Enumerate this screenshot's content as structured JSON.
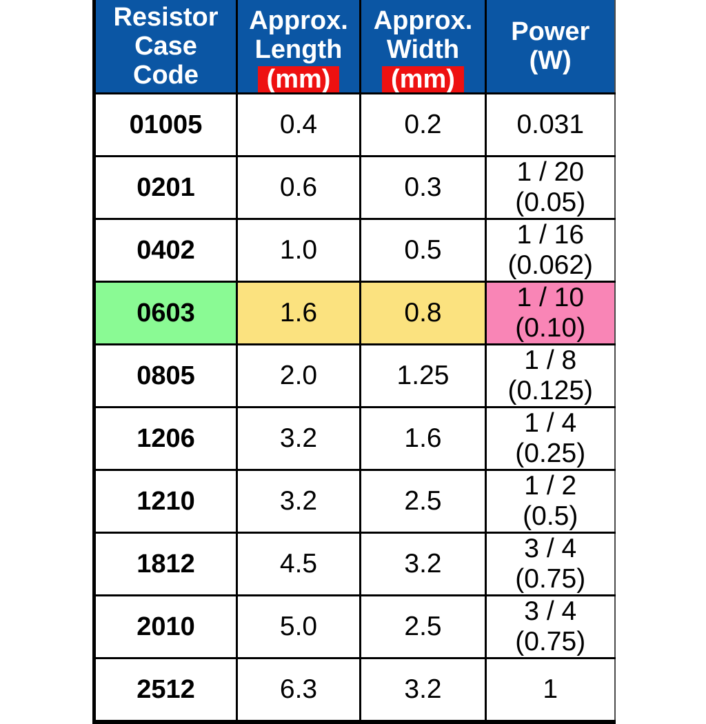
{
  "chart_data": {
    "type": "table",
    "columns": [
      "Resistor Case Code",
      "Approx. Length (mm)",
      "Approx. Width (mm)",
      "Power (W)"
    ],
    "rows": [
      [
        "01005",
        "0.4",
        "0.2",
        "0.031"
      ],
      [
        "0201",
        "0.6",
        "0.3",
        "1 / 20 (0.05)"
      ],
      [
        "0402",
        "1.0",
        "0.5",
        "1 / 16 (0.062)"
      ],
      [
        "0603",
        "1.6",
        "0.8",
        "1 / 10 (0.10)"
      ],
      [
        "0805",
        "2.0",
        "1.25",
        "1 / 8 (0.125)"
      ],
      [
        "1206",
        "3.2",
        "1.6",
        "1 / 4 (0.25)"
      ],
      [
        "1210",
        "3.2",
        "2.5",
        "1 / 2 (0.5)"
      ],
      [
        "1812",
        "4.5",
        "3.2",
        "3 / 4 (0.75)"
      ],
      [
        "2010",
        "5.0",
        "2.5",
        "3 / 4 (0.75)"
      ],
      [
        "2512",
        "6.3",
        "3.2",
        "1"
      ]
    ],
    "highlighted_row": "0603",
    "legend_position": "none",
    "grid": true
  },
  "table": {
    "header": {
      "code_lines": [
        "Resistor",
        "Case",
        "Code"
      ],
      "length_lines": [
        "Approx.",
        "Length"
      ],
      "length_unit": "(mm)",
      "width_lines": [
        "Approx.",
        "Width"
      ],
      "width_unit": "(mm)",
      "power_lines": [
        "Power",
        "(W)"
      ]
    },
    "rows": [
      {
        "code": "01005",
        "length": "0.4",
        "width": "0.2",
        "power_lines": [
          "0.031"
        ],
        "highlight": false
      },
      {
        "code": "0201",
        "length": "0.6",
        "width": "0.3",
        "power_lines": [
          "1 / 20",
          "(0.05)"
        ],
        "highlight": false
      },
      {
        "code": "0402",
        "length": "1.0",
        "width": "0.5",
        "power_lines": [
          "1 / 16",
          "(0.062)"
        ],
        "highlight": false
      },
      {
        "code": "0603",
        "length": "1.6",
        "width": "0.8",
        "power_lines": [
          "1 / 10",
          "(0.10)"
        ],
        "highlight": true
      },
      {
        "code": "0805",
        "length": "2.0",
        "width": "1.25",
        "power_lines": [
          "1 / 8",
          "(0.125)"
        ],
        "highlight": false
      },
      {
        "code": "1206",
        "length": "3.2",
        "width": "1.6",
        "power_lines": [
          "1 / 4",
          "(0.25)"
        ],
        "highlight": false
      },
      {
        "code": "1210",
        "length": "3.2",
        "width": "2.5",
        "power_lines": [
          "1 / 2",
          "(0.5)"
        ],
        "highlight": false
      },
      {
        "code": "1812",
        "length": "4.5",
        "width": "3.2",
        "power_lines": [
          "3 / 4",
          "(0.75)"
        ],
        "highlight": false
      },
      {
        "code": "2010",
        "length": "5.0",
        "width": "2.5",
        "power_lines": [
          "3 / 4",
          "(0.75)"
        ],
        "highlight": false
      },
      {
        "code": "2512",
        "length": "6.3",
        "width": "3.2",
        "power_lines": [
          "1"
        ],
        "highlight": false
      }
    ],
    "colors": {
      "header_bg": "#0B56A4",
      "header_text": "#FFFFFF",
      "unit_bg": "#EE1111",
      "unit_text": "#FFFFFF",
      "grid": "#000000",
      "body_text": "#000000",
      "highlight_code_bg": "#8AFA94",
      "highlight_size_bg": "#FBE27F",
      "highlight_power_bg": "#F985B6"
    }
  }
}
